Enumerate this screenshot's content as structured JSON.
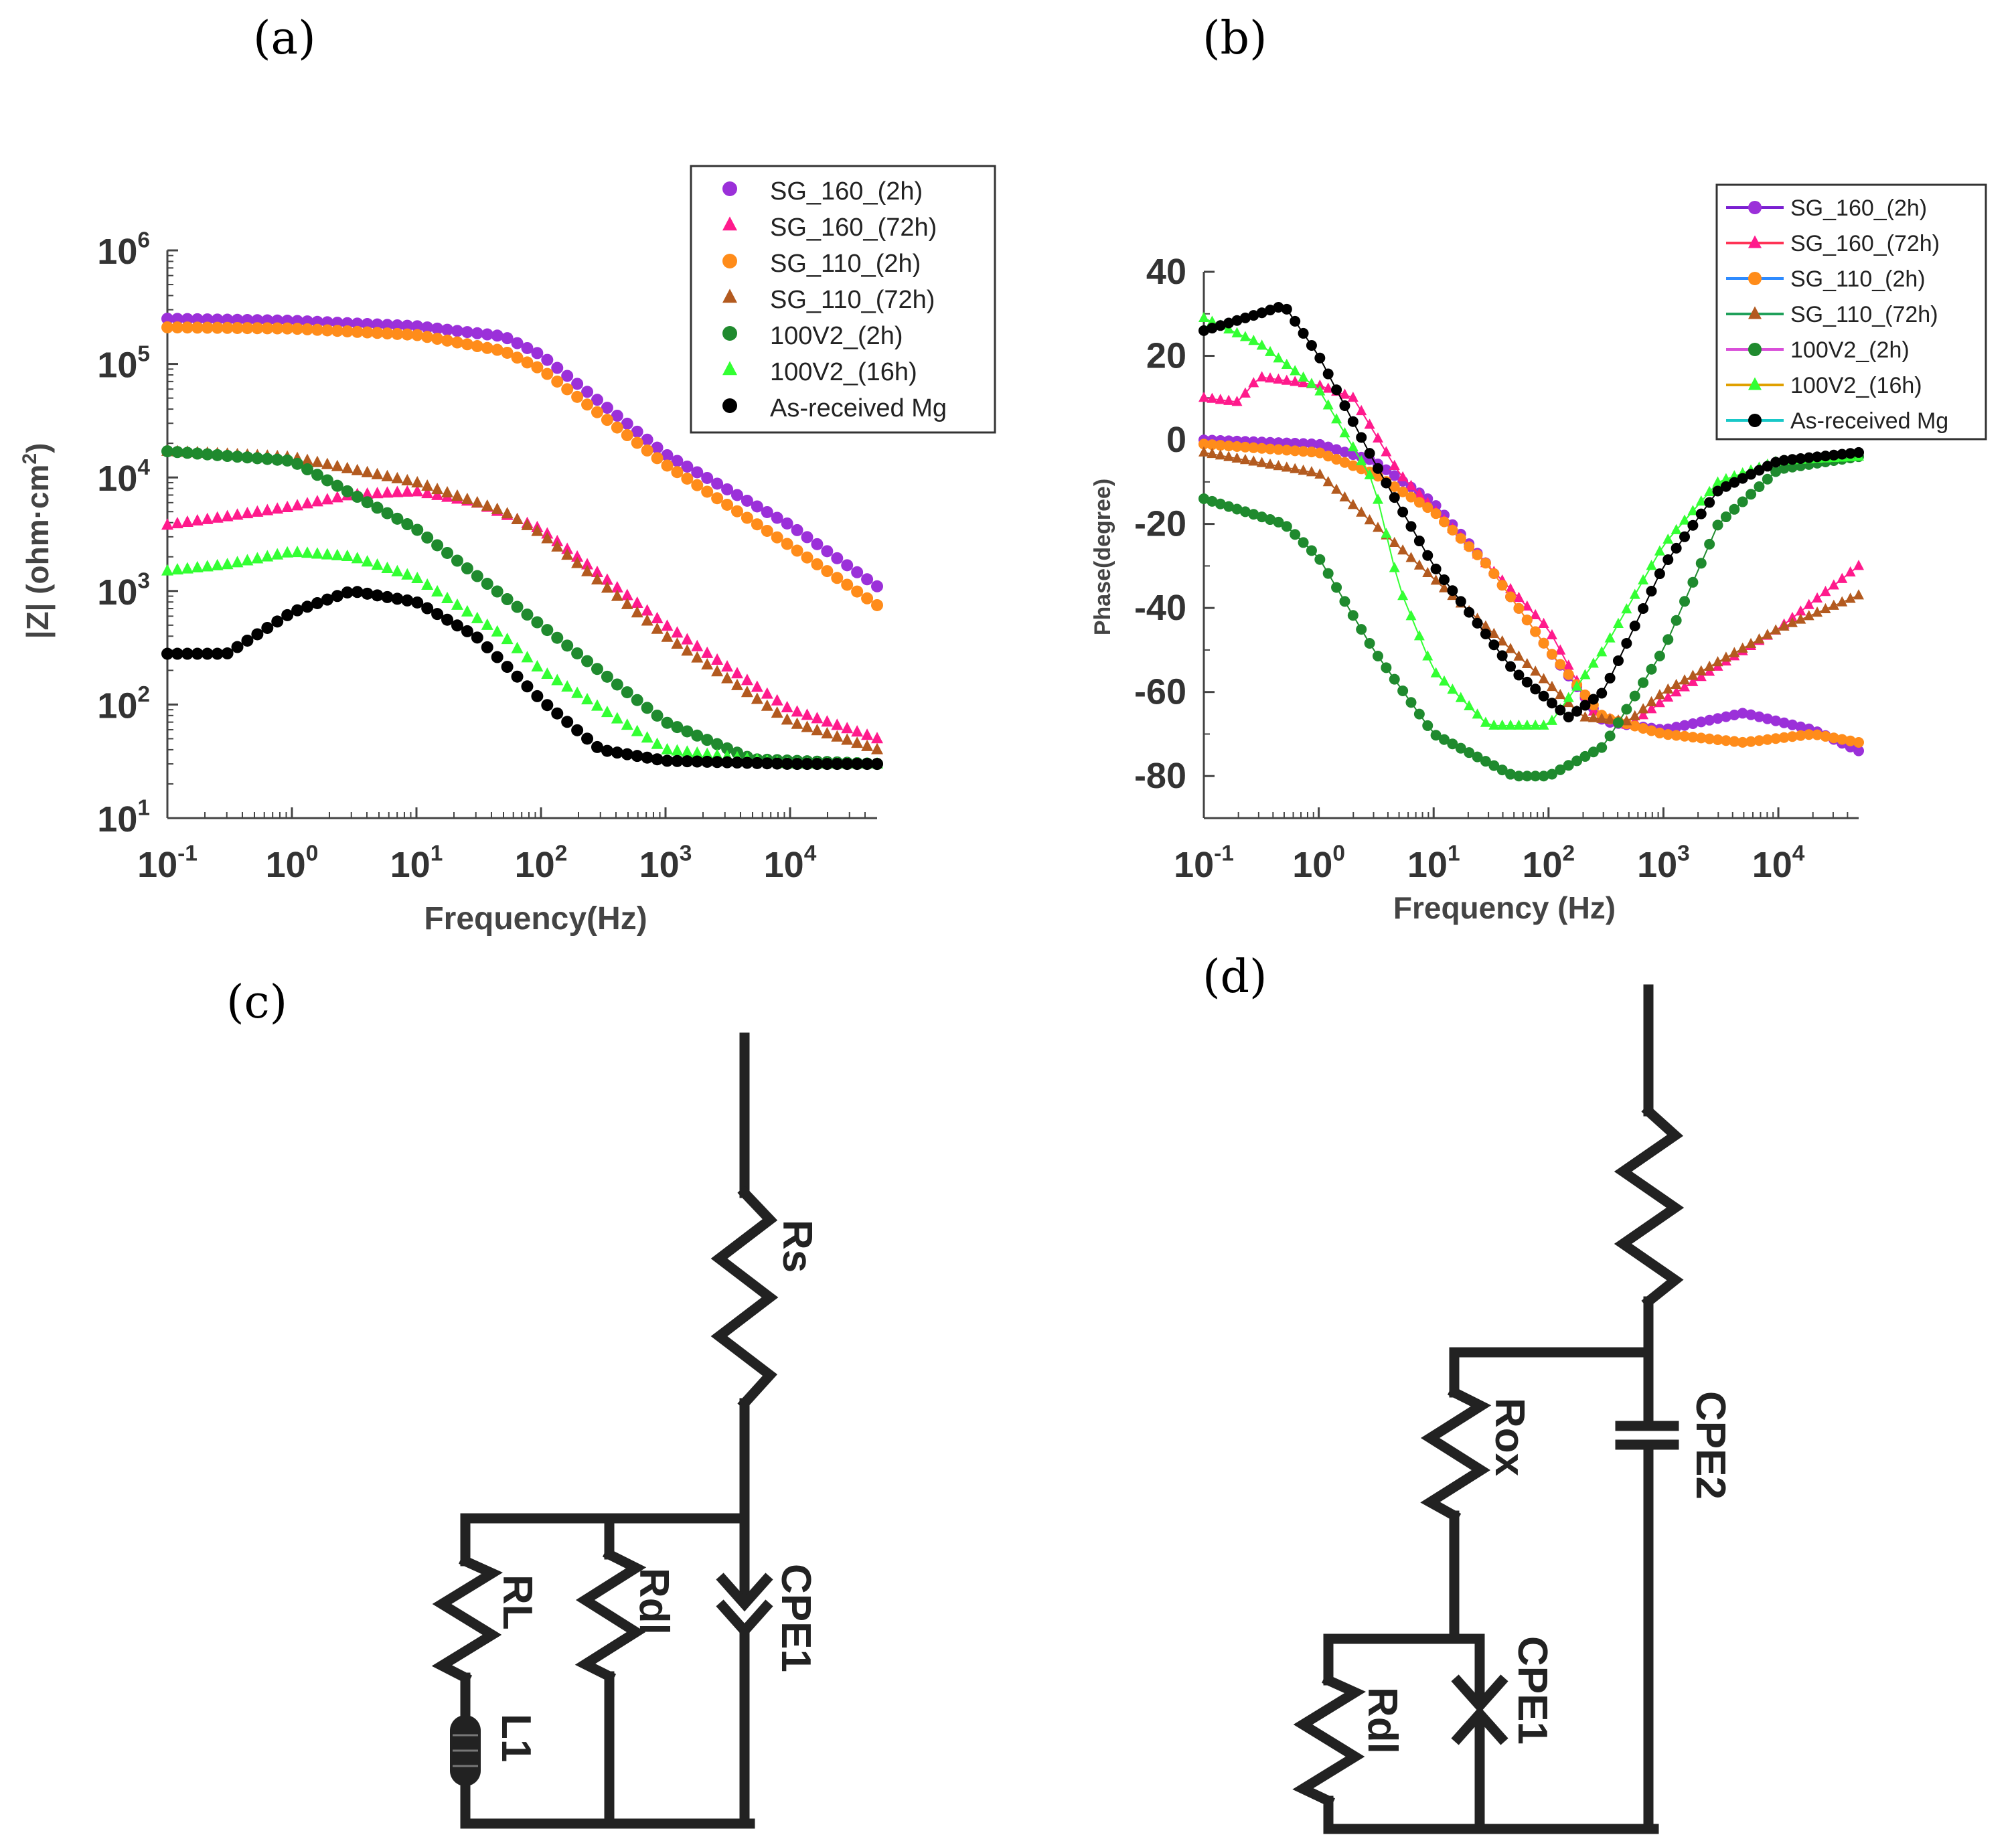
{
  "panel_labels": {
    "a": "(a)",
    "b": "(b)",
    "c": "(c)",
    "d": "(d)"
  },
  "chart_data": [
    {
      "panel": "(a)",
      "type": "scatter",
      "title": "",
      "xlabel": "Frequency(Hz)",
      "ylabel_prefix": "|Z| (ohm·cm",
      "ylabel_sup": "2",
      "ylabel_suffix": ")",
      "xscale": "log",
      "yscale": "log",
      "xlim": [
        0.1,
        50000
      ],
      "ylim": [
        10,
        1000000
      ],
      "x_ticks": [
        {
          "value": 0.1,
          "base": "10",
          "exp": "-1"
        },
        {
          "value": 1,
          "base": "10",
          "exp": "0"
        },
        {
          "value": 10,
          "base": "10",
          "exp": "1"
        },
        {
          "value": 100,
          "base": "10",
          "exp": "2"
        },
        {
          "value": 1000,
          "base": "10",
          "exp": "3"
        },
        {
          "value": 10000,
          "base": "10",
          "exp": "4"
        }
      ],
      "y_ticks": [
        {
          "value": 10,
          "base": "10",
          "exp": "1"
        },
        {
          "value": 100,
          "base": "10",
          "exp": "2"
        },
        {
          "value": 1000,
          "base": "10",
          "exp": "3"
        },
        {
          "value": 10000,
          "base": "10",
          "exp": "4"
        },
        {
          "value": 100000,
          "base": "10",
          "exp": "5"
        },
        {
          "value": 1000000,
          "base": "10",
          "exp": "6"
        }
      ],
      "legend_position": "top-right",
      "series": [
        {
          "name": "SG_160_(2h)",
          "color": "#9b30d9",
          "marker": "circle",
          "points": [
            [
              0.1,
              250000
            ],
            [
              1,
              240000
            ],
            [
              10,
              215000
            ],
            [
              50,
              175000
            ],
            [
              100,
              120000
            ],
            [
              1000,
              16000
            ],
            [
              10000,
              3800
            ],
            [
              50000,
              1100
            ]
          ]
        },
        {
          "name": "SG_160_(72h)",
          "color": "#ff1a8c",
          "marker": "triangle",
          "points": [
            [
              0.1,
              3800
            ],
            [
              0.3,
              4500
            ],
            [
              1,
              5500
            ],
            [
              3,
              7000
            ],
            [
              10,
              7500
            ],
            [
              30,
              6000
            ],
            [
              100,
              3500
            ],
            [
              1000,
              500
            ],
            [
              10000,
              90
            ],
            [
              50000,
              50
            ]
          ]
        },
        {
          "name": "SG_110_(2h)",
          "color": "#ff8c1a",
          "marker": "circle",
          "points": [
            [
              0.1,
              210000
            ],
            [
              1,
              205000
            ],
            [
              10,
              180000
            ],
            [
              50,
              130000
            ],
            [
              100,
              90000
            ],
            [
              1000,
              13000
            ],
            [
              10000,
              2500
            ],
            [
              50000,
              750
            ]
          ]
        },
        {
          "name": "SG_110_(72h)",
          "color": "#b35a1f",
          "marker": "triangle",
          "points": [
            [
              0.1,
              17000
            ],
            [
              1,
              15000
            ],
            [
              10,
              9000
            ],
            [
              50,
              5000
            ],
            [
              100,
              3200
            ],
            [
              1000,
              400
            ],
            [
              10000,
              70
            ],
            [
              50000,
              40
            ]
          ]
        },
        {
          "name": "100V2_(2h)",
          "color": "#1f8a2e",
          "marker": "circle",
          "points": [
            [
              0.1,
              17000
            ],
            [
              1,
              14000
            ],
            [
              10,
              3500
            ],
            [
              100,
              500
            ],
            [
              1000,
              70
            ],
            [
              5000,
              33
            ],
            [
              50000,
              30
            ]
          ]
        },
        {
          "name": "100V2_(16h)",
          "color": "#33ff33",
          "marker": "triangle",
          "points": [
            [
              0.1,
              1500
            ],
            [
              0.3,
              1700
            ],
            [
              1,
              2200
            ],
            [
              3,
              2000
            ],
            [
              10,
              1300
            ],
            [
              50,
              400
            ],
            [
              100,
              200
            ],
            [
              1000,
              40
            ],
            [
              10000,
              30
            ],
            [
              50000,
              30
            ]
          ]
        },
        {
          "name": "As-received Mg",
          "color": "#000000",
          "marker": "circle",
          "points": [
            [
              0.1,
              280
            ],
            [
              0.3,
              280
            ],
            [
              1,
              650
            ],
            [
              3,
              1000
            ],
            [
              10,
              800
            ],
            [
              30,
              400
            ],
            [
              100,
              110
            ],
            [
              300,
              40
            ],
            [
              1000,
              32
            ],
            [
              10000,
              30
            ],
            [
              50000,
              30
            ]
          ]
        }
      ]
    },
    {
      "panel": "(b)",
      "type": "line",
      "title": "",
      "xlabel": "Frequency (Hz)",
      "ylabel": "Phase(degree)",
      "xscale": "log",
      "xlim": [
        0.1,
        50000
      ],
      "ylim": [
        -90,
        40
      ],
      "x_ticks": [
        {
          "value": 0.1,
          "base": "10",
          "exp": "-1"
        },
        {
          "value": 1,
          "base": "10",
          "exp": "0"
        },
        {
          "value": 10,
          "base": "10",
          "exp": "1"
        },
        {
          "value": 100,
          "base": "10",
          "exp": "2"
        },
        {
          "value": 1000,
          "base": "10",
          "exp": "3"
        },
        {
          "value": 10000,
          "base": "10",
          "exp": "4"
        }
      ],
      "y_ticks": [
        {
          "value": 40,
          "label": "40"
        },
        {
          "value": 20,
          "label": "20"
        },
        {
          "value": 0,
          "label": "0"
        },
        {
          "value": -20,
          "label": "-20"
        },
        {
          "value": -40,
          "label": "-40"
        },
        {
          "value": -60,
          "label": "-60"
        },
        {
          "value": -80,
          "label": "-80"
        }
      ],
      "legend_position": "top-right",
      "series": [
        {
          "name": "SG_160_(2h)",
          "color": "#9b30d9",
          "marker": "circle",
          "points": [
            [
              0.1,
              0
            ],
            [
              1,
              -1
            ],
            [
              3,
              -5
            ],
            [
              10,
              -15
            ],
            [
              30,
              -30
            ],
            [
              100,
              -50
            ],
            [
              300,
              -67
            ],
            [
              1000,
              -69
            ],
            [
              5000,
              -65
            ],
            [
              20000,
              -69
            ],
            [
              50000,
              -74
            ]
          ]
        },
        {
          "name": "SG_160_(72h)",
          "color": "#ff1a8c",
          "marker": "triangle",
          "points": [
            [
              0.1,
              10
            ],
            [
              0.2,
              9
            ],
            [
              0.3,
              15
            ],
            [
              1,
              13
            ],
            [
              2,
              10
            ],
            [
              5,
              -8
            ],
            [
              20,
              -25
            ],
            [
              100,
              -45
            ],
            [
              250,
              -65
            ],
            [
              500,
              -68
            ],
            [
              1000,
              -62
            ],
            [
              10000,
              -45
            ],
            [
              50000,
              -30
            ]
          ]
        },
        {
          "name": "SG_110_(2h)",
          "color": "#ff8c1a",
          "marker": "circle",
          "points": [
            [
              0.1,
              -1
            ],
            [
              1,
              -3
            ],
            [
              3,
              -8
            ],
            [
              10,
              -17
            ],
            [
              30,
              -30
            ],
            [
              100,
              -50
            ],
            [
              300,
              -66
            ],
            [
              1000,
              -70
            ],
            [
              5000,
              -72
            ],
            [
              20000,
              -70
            ],
            [
              50000,
              -72
            ]
          ]
        },
        {
          "name": "SG_110_(72h)",
          "color": "#b35a1f",
          "marker": "triangle",
          "points": [
            [
              0.1,
              -3
            ],
            [
              1,
              -8
            ],
            [
              3,
              -20
            ],
            [
              10,
              -33
            ],
            [
              30,
              -45
            ],
            [
              100,
              -58
            ],
            [
              200,
              -66
            ],
            [
              500,
              -67
            ],
            [
              1000,
              -60
            ],
            [
              10000,
              -45
            ],
            [
              50000,
              -37
            ]
          ]
        },
        {
          "name": "100V2_(2h)",
          "color": "#1f8a2e",
          "marker": "circle",
          "points": [
            [
              0.1,
              -14
            ],
            [
              0.5,
              -20
            ],
            [
              1,
              -28
            ],
            [
              3,
              -50
            ],
            [
              10,
              -70
            ],
            [
              50,
              -80
            ],
            [
              100,
              -80
            ],
            [
              300,
              -73
            ],
            [
              1000,
              -50
            ],
            [
              3000,
              -20
            ],
            [
              10000,
              -7
            ],
            [
              50000,
              -4
            ]
          ]
        },
        {
          "name": "100V2_(16h)",
          "color": "#33ff33",
          "marker": "triangle",
          "points": [
            [
              0.1,
              29
            ],
            [
              0.3,
              23
            ],
            [
              1,
              12
            ],
            [
              3,
              -10
            ],
            [
              5,
              -35
            ],
            [
              10,
              -55
            ],
            [
              30,
              -68
            ],
            [
              100,
              -68
            ],
            [
              300,
              -50
            ],
            [
              1000,
              -25
            ],
            [
              3000,
              -10
            ],
            [
              10000,
              -5
            ],
            [
              50000,
              -4
            ]
          ]
        },
        {
          "name": "As-received Mg",
          "color": "#000000",
          "marker": "circle",
          "points": [
            [
              0.1,
              26
            ],
            [
              0.3,
              30
            ],
            [
              0.5,
              32
            ],
            [
              1,
              20
            ],
            [
              3,
              -5
            ],
            [
              10,
              -30
            ],
            [
              50,
              -55
            ],
            [
              150,
              -66
            ],
            [
              300,
              -60
            ],
            [
              1000,
              -30
            ],
            [
              3000,
              -12
            ],
            [
              10000,
              -5
            ],
            [
              50000,
              -3
            ]
          ]
        }
      ]
    }
  ],
  "circuits": {
    "c": {
      "Rs": "Rs",
      "RL": "RL",
      "Rdl": "Rdl",
      "CPE1": "CPE1",
      "L1": "L1"
    },
    "d": {
      "Rox": "Rox",
      "CPE2": "CPE2",
      "Rdl": "Rdl",
      "CPE1": "CPE1"
    }
  }
}
